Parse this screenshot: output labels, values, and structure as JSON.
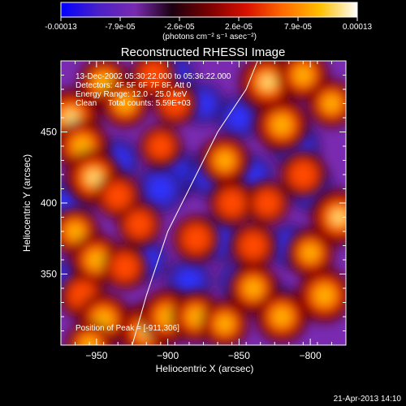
{
  "chart_data": {
    "type": "heatmap",
    "title": "Reconstructed RHESSI Image",
    "xlabel": "Heliocentric X (arcsec)",
    "ylabel": "Heliocentric Y (arcsec)",
    "xlim": [
      -975,
      -775
    ],
    "ylim": [
      300,
      500
    ],
    "x_ticks": [
      -950,
      -900,
      -850,
      -800
    ],
    "y_ticks": [
      350,
      400,
      450
    ],
    "colorbar": {
      "ticks": [
        "-0.00013",
        "-7.9e-05",
        "-2.6e-05",
        "2.6e-05",
        "7.9e-05",
        "0.00013"
      ],
      "vmin": -0.00013,
      "vmax": 0.00013,
      "unit_label": "(photons cm⁻² s⁻¹ asec⁻²)",
      "colors": [
        "#0000ff",
        "#4a20c8",
        "#7a2ab0",
        "#1a0010",
        "#7a0000",
        "#d81000",
        "#ff6a00",
        "#ffc000",
        "#ffffff"
      ]
    },
    "annotations": [
      "13-Dec-2002 05:30:22.000 to 05:36:22.000",
      "Detectors: 4F 5F 6F 7F 8F, Att 0",
      "Energy Range: 12.0 - 25.0 keV",
      "Clean     Total counts: 5.59E+03"
    ],
    "peak_label": "Position of Peak = [-911,306]",
    "peak_position": [
      -911,
      306
    ],
    "limb_curve": [
      [
        -925,
        300
      ],
      [
        -915,
        335
      ],
      [
        -900,
        380
      ],
      [
        -885,
        410
      ],
      [
        -865,
        450
      ],
      [
        -845,
        480
      ],
      [
        -837,
        500
      ]
    ],
    "blobs": [
      {
        "x": -968,
        "y": 460,
        "v": 1.0
      },
      {
        "x": -960,
        "y": 440,
        "v": 0.8
      },
      {
        "x": -945,
        "y": 485,
        "v": 0.7
      },
      {
        "x": -930,
        "y": 470,
        "v": 0.6
      },
      {
        "x": -952,
        "y": 418,
        "v": 0.9
      },
      {
        "x": -935,
        "y": 405,
        "v": 0.5
      },
      {
        "x": -965,
        "y": 380,
        "v": 0.6
      },
      {
        "x": -950,
        "y": 360,
        "v": 0.75
      },
      {
        "x": -930,
        "y": 355,
        "v": 0.5
      },
      {
        "x": -960,
        "y": 335,
        "v": 0.55
      },
      {
        "x": -945,
        "y": 318,
        "v": 0.8
      },
      {
        "x": -915,
        "y": 310,
        "v": 0.9
      },
      {
        "x": -900,
        "y": 320,
        "v": 0.85
      },
      {
        "x": -880,
        "y": 320,
        "v": 0.7
      },
      {
        "x": -860,
        "y": 315,
        "v": 0.6
      },
      {
        "x": -840,
        "y": 340,
        "v": 0.7
      },
      {
        "x": -820,
        "y": 320,
        "v": 0.75
      },
      {
        "x": -790,
        "y": 335,
        "v": 0.85
      },
      {
        "x": -800,
        "y": 365,
        "v": 0.6
      },
      {
        "x": -780,
        "y": 390,
        "v": 0.9
      },
      {
        "x": -805,
        "y": 420,
        "v": 0.55
      },
      {
        "x": -820,
        "y": 455,
        "v": 0.8
      },
      {
        "x": -830,
        "y": 485,
        "v": 0.9
      },
      {
        "x": -805,
        "y": 490,
        "v": 0.7
      },
      {
        "x": -785,
        "y": 470,
        "v": 0.6
      },
      {
        "x": -860,
        "y": 430,
        "v": 0.65
      },
      {
        "x": -855,
        "y": 400,
        "v": 0.5
      },
      {
        "x": -880,
        "y": 375,
        "v": 0.55
      },
      {
        "x": -895,
        "y": 470,
        "v": 0.45
      },
      {
        "x": -905,
        "y": 440,
        "v": 0.4
      },
      {
        "x": -920,
        "y": 385,
        "v": 0.45
      },
      {
        "x": -840,
        "y": 370,
        "v": 0.5
      },
      {
        "x": -830,
        "y": 400,
        "v": 0.45
      },
      {
        "x": -910,
        "y": 490,
        "v": 0.5
      },
      {
        "x": -955,
        "y": 300,
        "v": 0.6
      }
    ],
    "neg_blobs": [
      {
        "x": -895,
        "y": 420,
        "v": 1.0
      },
      {
        "x": -905,
        "y": 410,
        "v": 0.9
      },
      {
        "x": -870,
        "y": 420,
        "v": 0.85
      },
      {
        "x": -885,
        "y": 345,
        "v": 0.8
      },
      {
        "x": -850,
        "y": 460,
        "v": 0.7
      },
      {
        "x": -810,
        "y": 440,
        "v": 0.9
      },
      {
        "x": -800,
        "y": 410,
        "v": 0.75
      },
      {
        "x": -935,
        "y": 430,
        "v": 0.7
      },
      {
        "x": -970,
        "y": 400,
        "v": 0.75
      },
      {
        "x": -915,
        "y": 360,
        "v": 0.65
      },
      {
        "x": -865,
        "y": 375,
        "v": 0.8
      },
      {
        "x": -850,
        "y": 345,
        "v": 0.6
      },
      {
        "x": -815,
        "y": 370,
        "v": 0.65
      },
      {
        "x": -825,
        "y": 330,
        "v": 0.5
      },
      {
        "x": -970,
        "y": 345,
        "v": 0.55
      },
      {
        "x": -875,
        "y": 470,
        "v": 0.6
      },
      {
        "x": -895,
        "y": 490,
        "v": 0.55
      },
      {
        "x": -840,
        "y": 420,
        "v": 0.5
      }
    ]
  },
  "footer": {
    "timestamp": "21-Apr-2013 14:10"
  }
}
